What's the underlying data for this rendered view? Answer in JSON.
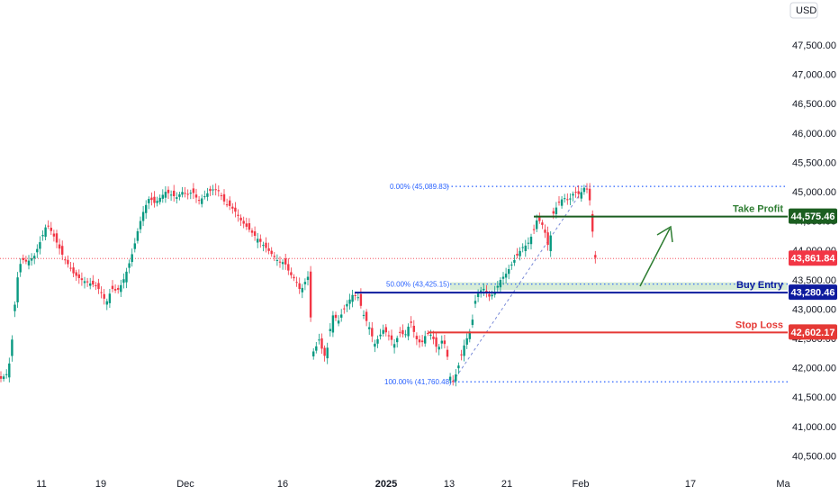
{
  "chart_data": {
    "type": "candlestick",
    "currency": "USD",
    "y_axis": {
      "min": 40250,
      "max": 48000,
      "ticks": [
        40500,
        41000,
        41500,
        42000,
        42500,
        43000,
        43500,
        44000,
        44500,
        45000,
        45500,
        46000,
        46500,
        47000,
        47500
      ],
      "tick_labels": [
        "40,500.00",
        "41,000.00",
        "41,500.00",
        "42,000.00",
        "42,500.00",
        "43,000.00",
        "43,500.00",
        "44,000.00",
        "44,500.00",
        "45,000.00",
        "45,500.00",
        "46,000.00",
        "46,500.00",
        "47,000.00",
        "47,500.00"
      ]
    },
    "x_axis": {
      "labels": [
        "11",
        "19",
        "Dec",
        "16",
        "2025",
        "13",
        "21",
        "Feb",
        "17",
        "Ma"
      ],
      "bold": [
        false,
        false,
        false,
        false,
        true,
        false,
        false,
        false,
        false,
        false
      ]
    },
    "price_path": [
      [
        0,
        41800
      ],
      [
        8,
        41900
      ],
      [
        12,
        42200
      ],
      [
        16,
        43000
      ],
      [
        20,
        43600
      ],
      [
        24,
        43850
      ],
      [
        30,
        43800
      ],
      [
        38,
        43900
      ],
      [
        46,
        44200
      ],
      [
        52,
        44450
      ],
      [
        58,
        44300
      ],
      [
        64,
        44100
      ],
      [
        70,
        43900
      ],
      [
        76,
        43750
      ],
      [
        82,
        43600
      ],
      [
        90,
        43500
      ],
      [
        98,
        43450
      ],
      [
        106,
        43400
      ],
      [
        112,
        43300
      ],
      [
        118,
        43100
      ],
      [
        124,
        43350
      ],
      [
        130,
        43300
      ],
      [
        136,
        43450
      ],
      [
        142,
        43700
      ],
      [
        148,
        44000
      ],
      [
        154,
        44400
      ],
      [
        160,
        44700
      ],
      [
        166,
        44900
      ],
      [
        172,
        44800
      ],
      [
        178,
        44900
      ],
      [
        184,
        45000
      ],
      [
        190,
        44950
      ],
      [
        196,
        44900
      ],
      [
        202,
        45000
      ],
      [
        208,
        44950
      ],
      [
        214,
        45000
      ],
      [
        220,
        44850
      ],
      [
        226,
        44900
      ],
      [
        232,
        45000
      ],
      [
        238,
        45050
      ],
      [
        244,
        45000
      ],
      [
        250,
        44800
      ],
      [
        256,
        44750
      ],
      [
        262,
        44650
      ],
      [
        268,
        44500
      ],
      [
        274,
        44400
      ],
      [
        280,
        44300
      ],
      [
        286,
        44200
      ],
      [
        292,
        44100
      ],
      [
        298,
        44000
      ],
      [
        304,
        43900
      ],
      [
        310,
        43800
      ],
      [
        316,
        43800
      ],
      [
        322,
        43600
      ],
      [
        328,
        43500
      ],
      [
        334,
        43300
      ],
      [
        340,
        43500
      ],
      [
        344,
        43600
      ],
      [
        346,
        42250
      ],
      [
        350,
        42300
      ],
      [
        354,
        42500
      ],
      [
        358,
        42300
      ],
      [
        362,
        42150
      ],
      [
        366,
        42600
      ],
      [
        370,
        42900
      ],
      [
        376,
        42800
      ],
      [
        382,
        43000
      ],
      [
        386,
        43100
      ],
      [
        392,
        43250
      ],
      [
        398,
        43200
      ],
      [
        404,
        42900
      ],
      [
        410,
        42700
      ],
      [
        416,
        42400
      ],
      [
        420,
        42500
      ],
      [
        426,
        42650
      ],
      [
        432,
        42550
      ],
      [
        438,
        42400
      ],
      [
        444,
        42600
      ],
      [
        450,
        42550
      ],
      [
        456,
        42800
      ],
      [
        462,
        42500
      ],
      [
        468,
        42400
      ],
      [
        474,
        42600
      ],
      [
        480,
        42550
      ],
      [
        486,
        42300
      ],
      [
        492,
        42500
      ],
      [
        496,
        42300
      ],
      [
        500,
        41850
      ],
      [
        503,
        41760
      ],
      [
        508,
        41950
      ],
      [
        512,
        42200
      ],
      [
        516,
        42400
      ],
      [
        520,
        42550
      ],
      [
        524,
        42700
      ],
      [
        527,
        43100
      ],
      [
        532,
        43300
      ],
      [
        538,
        43350
      ],
      [
        544,
        43200
      ],
      [
        550,
        43300
      ],
      [
        556,
        43500
      ],
      [
        562,
        43600
      ],
      [
        568,
        43750
      ],
      [
        574,
        43900
      ],
      [
        580,
        44050
      ],
      [
        586,
        44100
      ],
      [
        592,
        44300
      ],
      [
        597,
        44550
      ],
      [
        604,
        44400
      ],
      [
        610,
        44000
      ],
      [
        614,
        44600
      ],
      [
        620,
        44800
      ],
      [
        626,
        44900
      ],
      [
        632,
        44850
      ],
      [
        638,
        45000
      ],
      [
        644,
        44950
      ],
      [
        650,
        45089
      ],
      [
        654,
        45000
      ],
      [
        657,
        44600
      ],
      [
        660,
        43900
      ],
      [
        662,
        43862
      ]
    ],
    "fib": [
      {
        "label": "0.00% (45,089.83)",
        "value": 45089.83
      },
      {
        "label": "50.00% (43,425.15)",
        "value": 43425.15
      },
      {
        "label": "100.00% (41,760.48)",
        "value": 41760.48
      }
    ],
    "levels": [
      {
        "name": "Take Profit",
        "value": 44575.46,
        "label": "44,575.46",
        "color": "#1b5e20",
        "text_color": "#2e7d32"
      },
      {
        "name": "Buy Entry",
        "value": 43280.46,
        "label": "43,280.46",
        "color": "#0d1b9e",
        "text_color": "#0d1b9e"
      },
      {
        "name": "Stop Loss",
        "value": 42602.17,
        "label": "42,602.17",
        "color": "#e53935",
        "text_color": "#e53935"
      }
    ],
    "current_price": {
      "value": 43861.84,
      "label": "43,861.84",
      "color": "#f23645"
    },
    "colors": {
      "up": "#089981",
      "down": "#f23645",
      "fib": "#2962ff",
      "zone": "#c8e6c9"
    }
  }
}
